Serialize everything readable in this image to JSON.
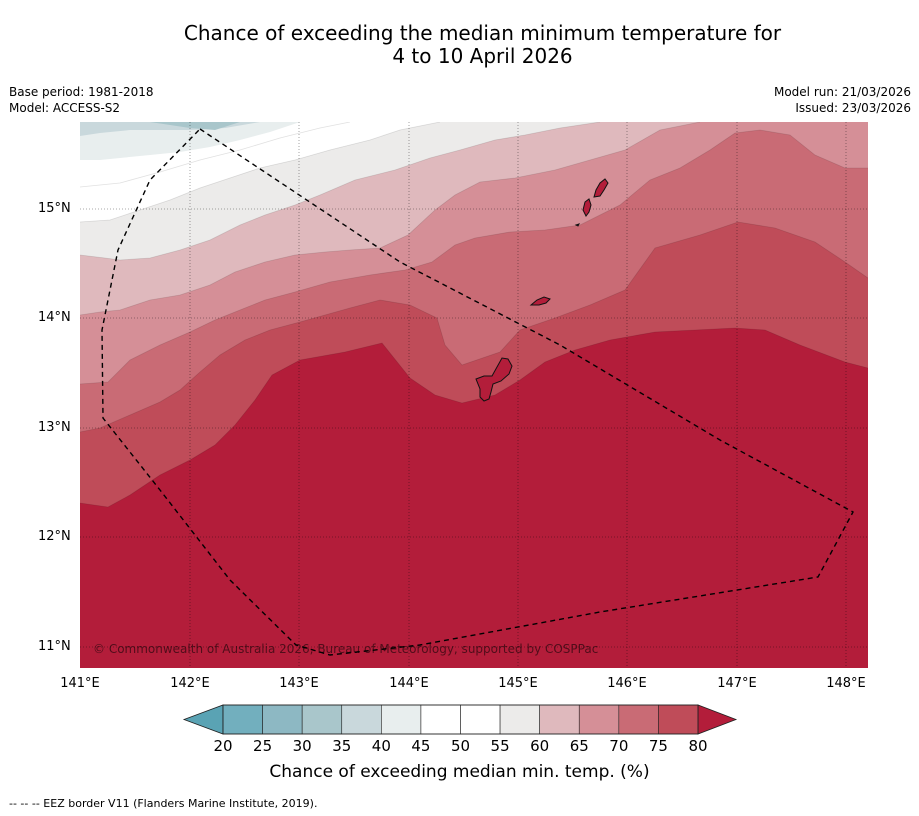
{
  "title_line1": "Chance of exceeding the median minimum temperature for",
  "title_line2": "4 to 10 April 2026",
  "meta": {
    "base_period": "Base period: 1981-2018",
    "model": "Model: ACCESS-S2",
    "model_run": "Model run: 21/03/2026",
    "issued": "Issued: 23/03/2026"
  },
  "map": {
    "lat_labels": [
      "15°N",
      "14°N",
      "13°N",
      "12°N",
      "11°N"
    ],
    "lon_labels": [
      "141°E",
      "142°E",
      "143°E",
      "144°E",
      "145°E",
      "146°E",
      "147°E",
      "148°E"
    ],
    "credit": "© Commonwealth of Australia 2026, Bureau of Meteorology, supported by COSPPac"
  },
  "colorbar": {
    "ticks": [
      "20",
      "25",
      "30",
      "35",
      "40",
      "45",
      "50",
      "55",
      "60",
      "65",
      "70",
      "75",
      "80"
    ],
    "colors": [
      "#5aa3b4",
      "#72afbe",
      "#8db8c3",
      "#a9c6cb",
      "#c9d8dc",
      "#e8eeee",
      "#ffffff",
      "#ffffff",
      "#ecebea",
      "#dfb9bd",
      "#d58f97",
      "#c96b75",
      "#bf4c59",
      "#b31d3a"
    ],
    "label": "Chance of exceeding median min. temp. (%)"
  },
  "footer": "--  --  -- EEZ border V11 (Flanders Marine Institute, 2019)."
}
